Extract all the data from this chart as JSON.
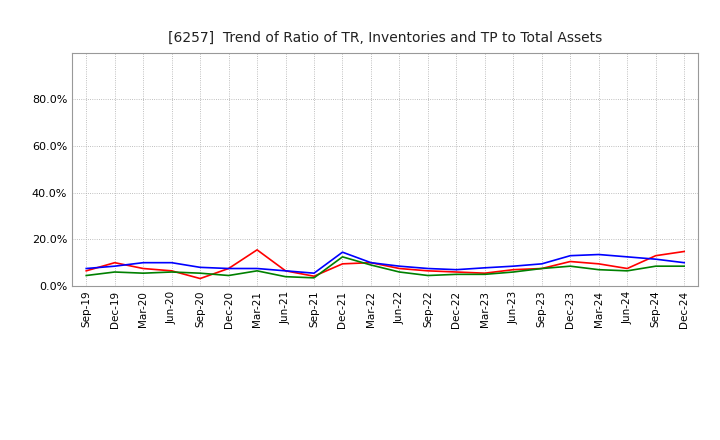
{
  "title": "[6257]  Trend of Ratio of TR, Inventories and TP to Total Assets",
  "x_labels": [
    "Sep-19",
    "Dec-19",
    "Mar-20",
    "Jun-20",
    "Sep-20",
    "Dec-20",
    "Mar-21",
    "Jun-21",
    "Sep-21",
    "Dec-21",
    "Mar-22",
    "Jun-22",
    "Sep-22",
    "Dec-22",
    "Mar-23",
    "Jun-23",
    "Sep-23",
    "Dec-23",
    "Mar-24",
    "Jun-24",
    "Sep-24",
    "Dec-24"
  ],
  "trade_receivables": [
    0.065,
    0.1,
    0.075,
    0.065,
    0.032,
    0.075,
    0.155,
    0.065,
    0.042,
    0.095,
    0.1,
    0.075,
    0.065,
    0.06,
    0.055,
    0.07,
    0.075,
    0.105,
    0.095,
    0.075,
    0.13,
    0.148
  ],
  "inventories": [
    0.075,
    0.085,
    0.1,
    0.1,
    0.08,
    0.075,
    0.075,
    0.065,
    0.055,
    0.145,
    0.1,
    0.085,
    0.075,
    0.07,
    0.078,
    0.085,
    0.095,
    0.13,
    0.135,
    0.125,
    0.115,
    0.1
  ],
  "trade_payables": [
    0.045,
    0.06,
    0.055,
    0.06,
    0.055,
    0.045,
    0.065,
    0.04,
    0.035,
    0.125,
    0.09,
    0.06,
    0.045,
    0.05,
    0.05,
    0.06,
    0.075,
    0.085,
    0.07,
    0.065,
    0.085,
    0.085
  ],
  "tr_color": "#ff0000",
  "inv_color": "#0000ff",
  "tp_color": "#008000",
  "ylim": [
    0.0,
    1.0
  ],
  "yticks": [
    0.0,
    0.2,
    0.4,
    0.6,
    0.8
  ],
  "background_color": "#ffffff",
  "grid_color": "#aaaaaa"
}
